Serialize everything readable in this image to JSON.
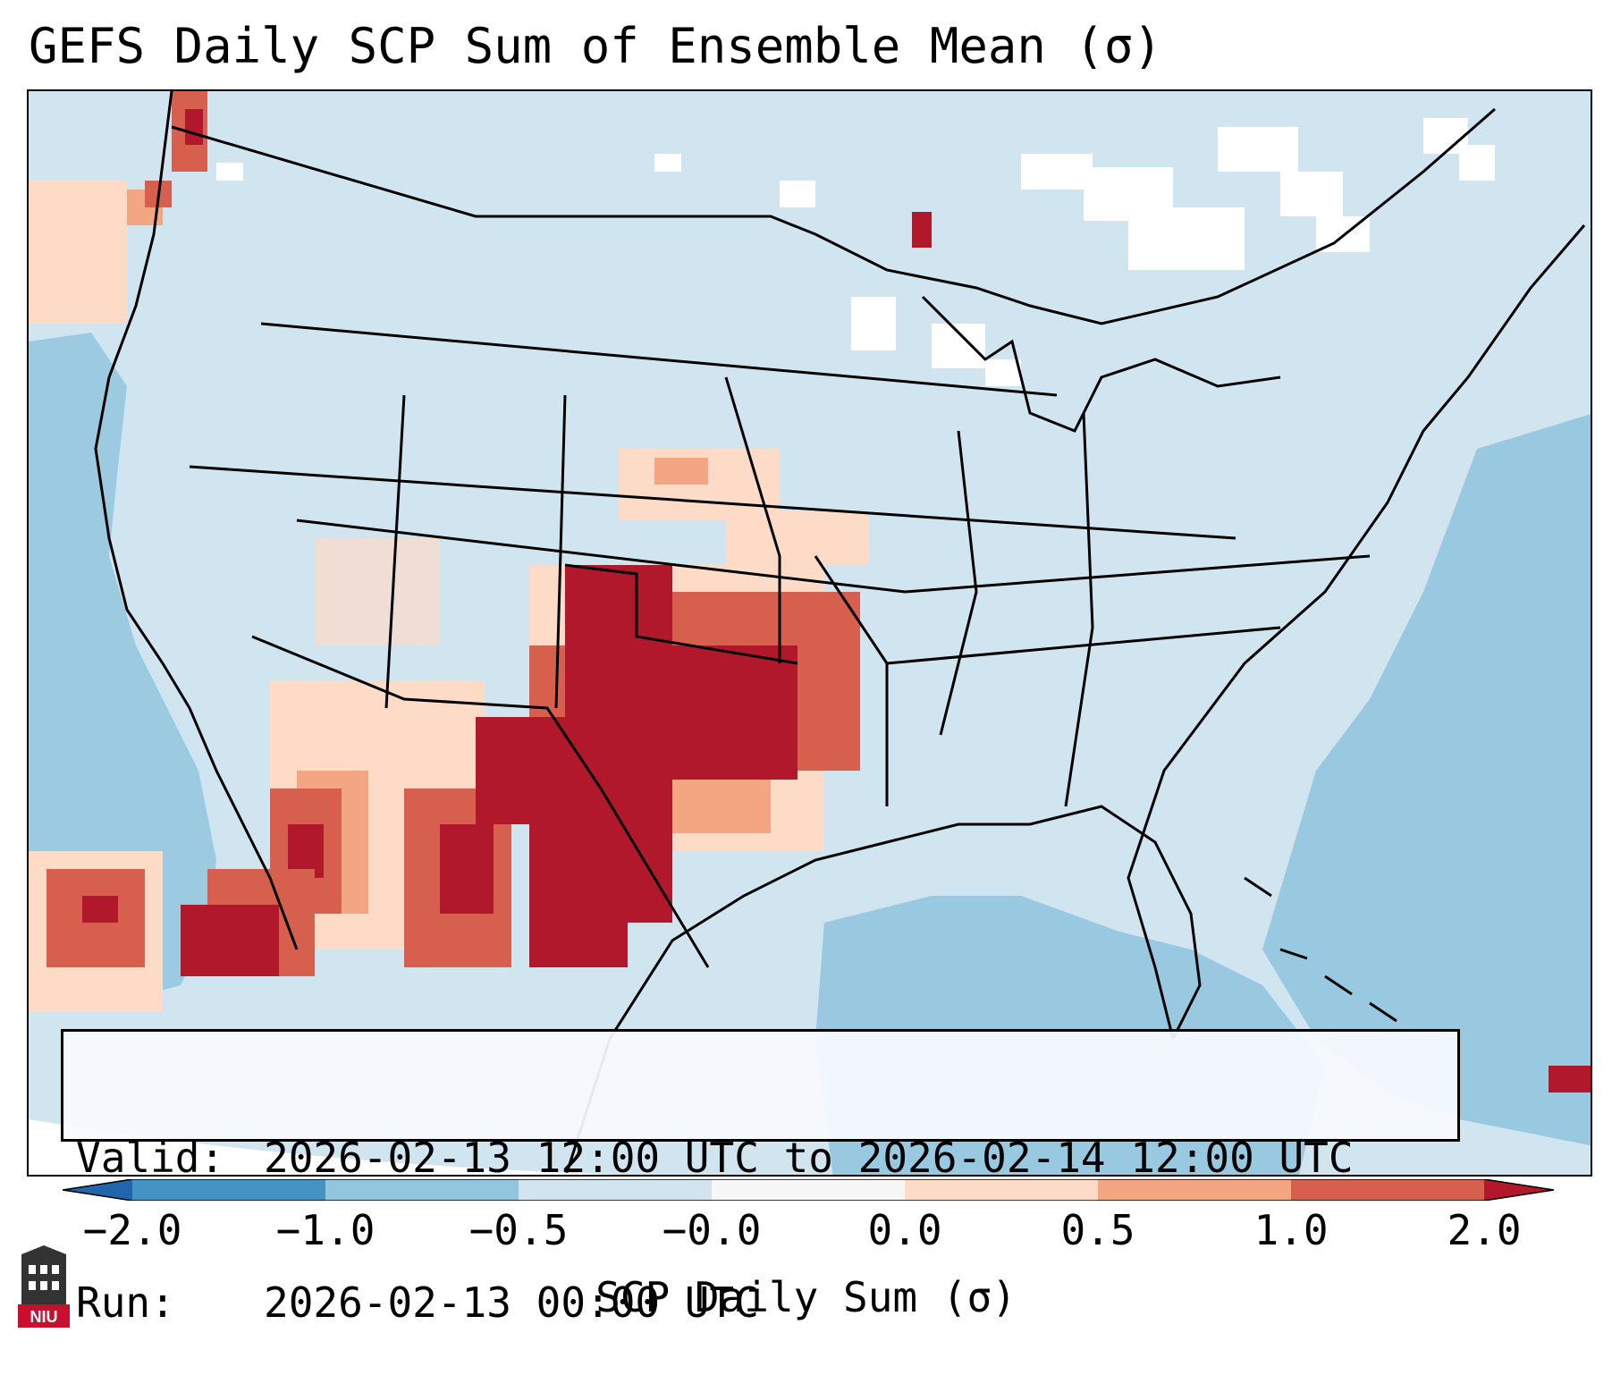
{
  "title": "GEFS Daily SCP Sum of Ensemble Mean (σ)",
  "info": {
    "valid_label": "Valid:",
    "valid_value": "2026-02-13 12:00 UTC to 2026-02-14 12:00 UTC",
    "run_label": "Run:",
    "run_value": "2026-02-13 00:00 UTC"
  },
  "colorbar": {
    "label": "SCP Daily Sum (σ)",
    "ticks": [
      "−2.0",
      "−1.0",
      "−0.5",
      "−0.0",
      "0.0",
      "0.5",
      "1.0",
      "2.0"
    ],
    "bins": [
      {
        "color": "#4393c3"
      },
      {
        "color": "#92c5de"
      },
      {
        "color": "#d1e5f0"
      },
      {
        "color": "#f7f7f7"
      },
      {
        "color": "#fddbc7"
      },
      {
        "color": "#f4a582"
      },
      {
        "color": "#d6604d"
      }
    ],
    "under_color": "#2166ac",
    "over_color": "#b2182b"
  },
  "colors": {
    "neg_strong": "#92c5de",
    "neg_weak": "#d1e5f0",
    "neutral": "#ffffff",
    "pos_weak": "#fddbc7",
    "pos_mid": "#f4a582",
    "pos_strong": "#d6604d",
    "pos_max": "#b2182b"
  },
  "logo": {
    "text": "NIU",
    "name": "niu-logo"
  }
}
